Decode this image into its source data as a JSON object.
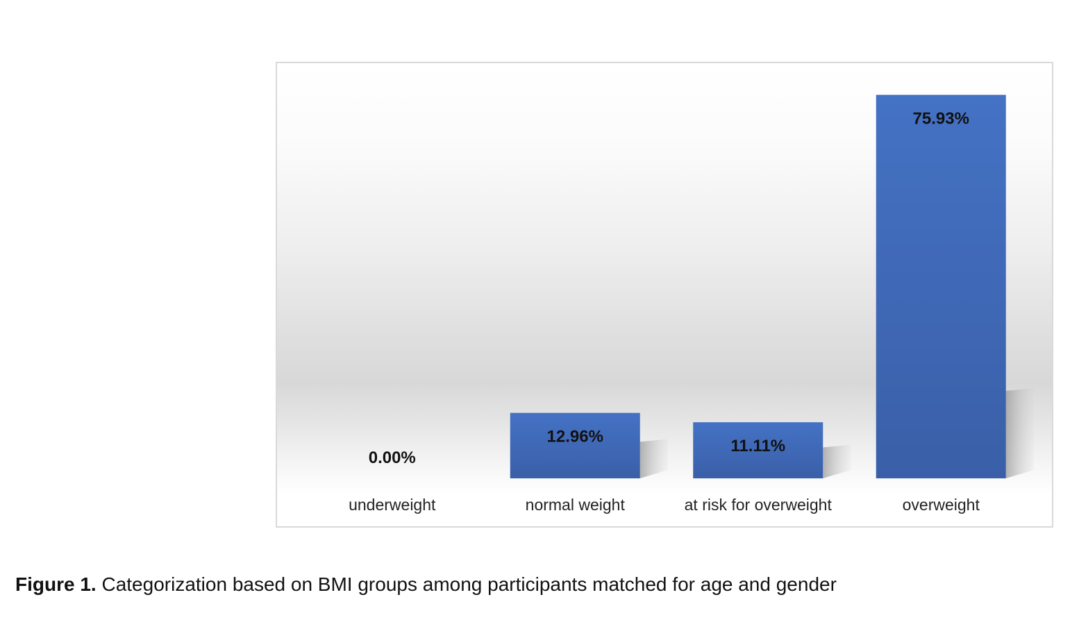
{
  "chart_data": {
    "type": "bar",
    "categories": [
      "underweight",
      "normal weight",
      "at risk for overweight",
      "overweight"
    ],
    "values": [
      0.0,
      12.96,
      11.11,
      75.93
    ],
    "value_labels": [
      "0.00%",
      "12.96%",
      "11.11%",
      "75.93%"
    ],
    "unit": "%",
    "ylim": [
      0,
      80
    ],
    "grid": false,
    "legend": "none",
    "bar_color": "#4472c4",
    "bar_color_dark": "#3a5fa8"
  },
  "caption": {
    "figure_number": "Figure 1.",
    "text": " Categorization based on BMI groups among participants matched for age and gender"
  }
}
